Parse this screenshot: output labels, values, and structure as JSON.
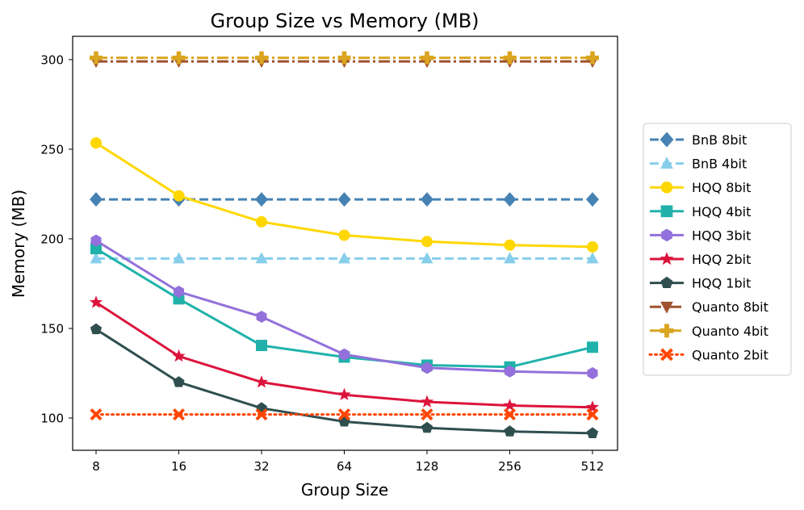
{
  "chart_data": {
    "type": "line",
    "title": "Group Size vs Memory (MB)",
    "xlabel": "Group Size",
    "ylabel": "Memory (MB)",
    "categories": [
      "8",
      "16",
      "32",
      "64",
      "128",
      "256",
      "512"
    ],
    "yticks": [
      100,
      150,
      200,
      250,
      300
    ],
    "ylim": [
      82,
      313
    ],
    "grid": false,
    "legend_position": "right",
    "series": [
      {
        "name": "BnB 8bit",
        "values": [
          222,
          222,
          222,
          222,
          222,
          222,
          222
        ],
        "color": "#4682B4",
        "dash": "dashed",
        "marker": "diamond"
      },
      {
        "name": "BnB 4bit",
        "values": [
          189,
          189,
          189,
          189,
          189,
          189,
          189
        ],
        "color": "#87CEEB",
        "dash": "dashed",
        "marker": "triangle"
      },
      {
        "name": "HQQ 8bit",
        "values": [
          253.5,
          224,
          209.5,
          202,
          198.5,
          196.5,
          195.5
        ],
        "color": "#FFD700",
        "dash": "solid",
        "marker": "circle"
      },
      {
        "name": "HQQ 4bit",
        "values": [
          194.5,
          166.5,
          140.5,
          134,
          129.5,
          128.5,
          139.5
        ],
        "color": "#20B2AA",
        "dash": "solid",
        "marker": "square"
      },
      {
        "name": "HQQ 3bit",
        "values": [
          199,
          170.5,
          156.5,
          135.5,
          128,
          126,
          125
        ],
        "color": "#9370DB",
        "dash": "solid",
        "marker": "hexagon"
      },
      {
        "name": "HQQ 2bit",
        "values": [
          164.5,
          134.5,
          120,
          113,
          109,
          107,
          106
        ],
        "color": "#DC143C",
        "dash": "solid",
        "marker": "star"
      },
      {
        "name": "HQQ 1bit",
        "values": [
          149.5,
          120,
          105.5,
          98,
          94.5,
          92.5,
          91.5
        ],
        "color": "#2F4F4F",
        "dash": "solid",
        "marker": "pentagon"
      },
      {
        "name": "Quanto 8bit",
        "values": [
          299,
          299,
          299,
          299,
          299,
          299,
          299
        ],
        "color": "#A0522D",
        "dash": "dashdot",
        "marker": "triangle-down"
      },
      {
        "name": "Quanto 4bit",
        "values": [
          301,
          301,
          301,
          301,
          301,
          301,
          301
        ],
        "color": "#DAA520",
        "dash": "dashdot",
        "marker": "plus"
      },
      {
        "name": "Quanto 2bit",
        "values": [
          102,
          102,
          102,
          102,
          102,
          102,
          102
        ],
        "color": "#FF4500",
        "dash": "dotted",
        "marker": "x"
      }
    ]
  }
}
